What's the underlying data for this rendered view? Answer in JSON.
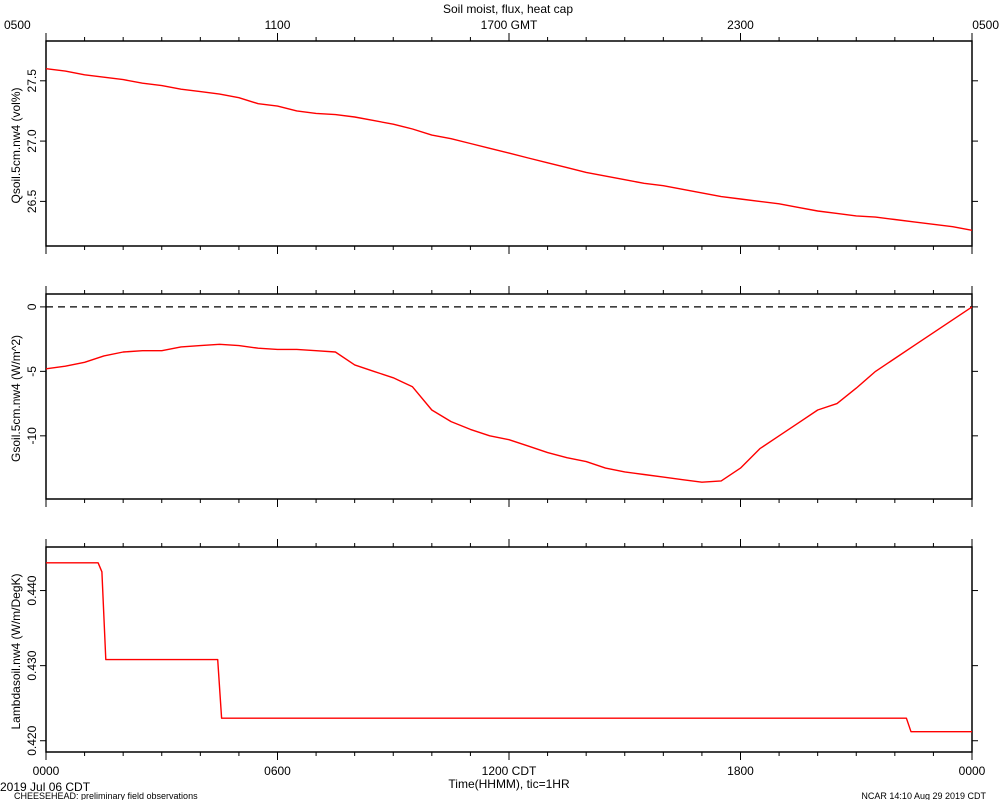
{
  "figure": {
    "title": "Soil moist, flux, heat cap",
    "top_axis_ticks": [
      "0500",
      "1100",
      "1700 GMT",
      "2300",
      "0500"
    ],
    "bottom_axis_ticks": [
      "0000",
      "0600",
      "1200 CDT",
      "1800",
      "0000"
    ],
    "xlabel": "Time(HHMM), tic=1HR",
    "date_label": "2019 Jul 06 CDT",
    "footer_left": "CHEESEHEAD: preliminary field observations",
    "footer_right": "NCAR 14:10 Aug 29 2019 CDT",
    "line_color": "#ff0000"
  },
  "chart_data": [
    {
      "type": "line",
      "ylabel": "Qsoil.5cm.nw4 (vol%)",
      "xlim": [
        0,
        24
      ],
      "ylim": [
        26.13,
        27.83
      ],
      "yticks": [
        26.5,
        27.0,
        27.5
      ],
      "ytick_labels": [
        "26.5",
        "27.0",
        "27.5"
      ],
      "grid": false,
      "x": [
        0,
        0.5,
        1,
        1.5,
        2,
        2.5,
        3,
        3.5,
        4,
        4.5,
        5,
        5.5,
        6,
        6.5,
        7,
        7.5,
        8,
        8.5,
        9,
        9.5,
        10,
        10.5,
        11,
        11.5,
        12,
        12.5,
        13,
        13.5,
        14,
        14.5,
        15,
        15.5,
        16,
        16.5,
        17,
        17.5,
        18,
        18.5,
        19,
        19.5,
        20,
        20.5,
        21,
        21.5,
        22,
        22.5,
        23,
        23.5,
        24
      ],
      "y": [
        27.6,
        27.58,
        27.55,
        27.53,
        27.51,
        27.48,
        27.46,
        27.43,
        27.41,
        27.39,
        27.36,
        27.31,
        27.29,
        27.25,
        27.23,
        27.22,
        27.2,
        27.17,
        27.14,
        27.1,
        27.05,
        27.02,
        26.98,
        26.94,
        26.9,
        26.86,
        26.82,
        26.78,
        26.74,
        26.71,
        26.68,
        26.65,
        26.63,
        26.6,
        26.57,
        26.54,
        26.52,
        26.5,
        26.48,
        26.45,
        26.42,
        26.4,
        26.38,
        26.37,
        26.35,
        26.33,
        26.31,
        26.29,
        26.26
      ]
    },
    {
      "type": "line",
      "ylabel": "Gsoil.5cm.nw4 (W/m^2)",
      "xlim": [
        0,
        24
      ],
      "ylim": [
        -14.9,
        1.0
      ],
      "yticks": [
        -10,
        -5,
        0
      ],
      "ytick_labels": [
        "-10",
        "-5",
        "0"
      ],
      "reference_line": 0,
      "grid": false,
      "x": [
        0,
        0.5,
        1,
        1.5,
        2,
        2.5,
        3,
        3.5,
        4,
        4.5,
        5,
        5.5,
        6,
        6.5,
        7,
        7.5,
        8,
        8.5,
        9,
        9.5,
        10,
        10.5,
        11,
        11.5,
        12,
        12.5,
        13,
        13.5,
        14,
        14.5,
        15,
        15.5,
        16,
        16.5,
        17,
        17.5,
        18,
        18.5,
        19,
        19.5,
        20,
        20.5,
        21,
        21.5,
        22,
        22.5,
        23,
        23.5,
        24
      ],
      "y": [
        -4.8,
        -4.6,
        -4.3,
        -3.8,
        -3.5,
        -3.4,
        -3.4,
        -3.1,
        -3.0,
        -2.9,
        -3.0,
        -3.2,
        -3.3,
        -3.3,
        -3.4,
        -3.5,
        -4.5,
        -5.0,
        -5.5,
        -6.2,
        -8.0,
        -8.9,
        -9.5,
        -10.0,
        -10.3,
        -10.8,
        -11.3,
        -11.7,
        -12.0,
        -12.5,
        -12.8,
        -13.0,
        -13.2,
        -13.4,
        -13.6,
        -13.5,
        -12.5,
        -11.0,
        -10.0,
        -9.0,
        -8.0,
        -7.5,
        -6.3,
        -5.0,
        -4.0,
        -3.0,
        -2.0,
        -1.0,
        0.0
      ]
    },
    {
      "type": "line",
      "ylabel": "Lambdasoil.nw4 (W/m/DegK)",
      "xlim": [
        0,
        24
      ],
      "ylim": [
        0.4185,
        0.4458
      ],
      "yticks": [
        0.42,
        0.43,
        0.44
      ],
      "ytick_labels": [
        "0.420",
        "0.430",
        "0.440"
      ],
      "grid": false,
      "x": [
        0,
        1.35,
        1.45,
        1.55,
        4.45,
        4.55,
        22.3,
        22.42,
        24
      ],
      "y": [
        0.4437,
        0.4437,
        0.4425,
        0.4308,
        0.4308,
        0.423,
        0.423,
        0.4212,
        0.4212
      ]
    }
  ]
}
